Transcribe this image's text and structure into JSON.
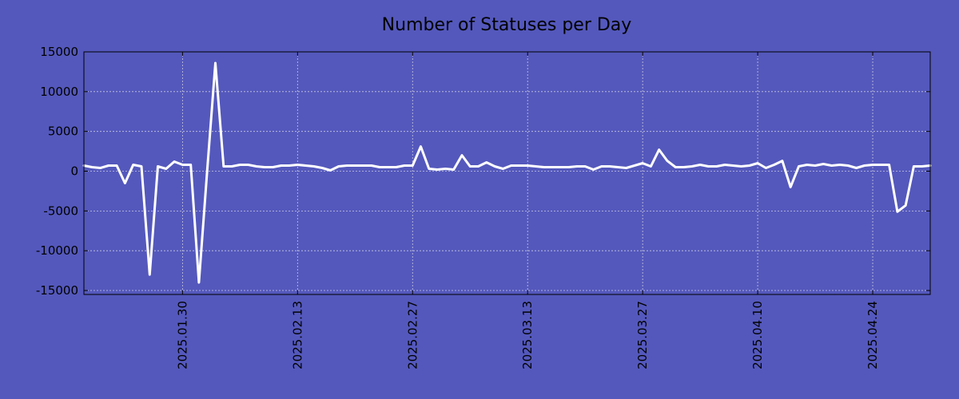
{
  "chart_data": {
    "type": "line",
    "title": "Number of Statuses per Day",
    "xlabel": "",
    "ylabel": "",
    "x_range": [
      "2025-01-18",
      "2025-05-01"
    ],
    "ylim": [
      -15500,
      15000
    ],
    "y_ticks": [
      15000,
      10000,
      5000,
      0,
      -5000,
      -10000,
      -15000
    ],
    "y_tick_labels": [
      "15000",
      "10000",
      "5000",
      "0",
      "-5000",
      "-10000",
      "-15000"
    ],
    "x_ticks": [
      "2025-01-30",
      "2025-02-13",
      "2025-02-27",
      "2025-03-13",
      "2025-03-27",
      "2025-04-10",
      "2025-04-24"
    ],
    "x_tick_labels": [
      "2025.01.30",
      "2025.02.13",
      "2025.02.27",
      "2025.03.13",
      "2025.03.27",
      "2025.04.10",
      "2025.04.24"
    ],
    "grid": true,
    "colors": {
      "background": "#5458bc",
      "line": "#ffffff"
    },
    "series": [
      {
        "x": [
          "2025-01-18",
          "2025-01-19",
          "2025-01-20",
          "2025-01-21",
          "2025-01-22",
          "2025-01-23",
          "2025-01-24",
          "2025-01-25",
          "2025-01-26",
          "2025-01-27",
          "2025-01-28",
          "2025-01-29",
          "2025-01-30",
          "2025-01-31",
          "2025-02-01",
          "2025-02-02",
          "2025-02-03",
          "2025-02-04",
          "2025-02-05",
          "2025-02-06",
          "2025-02-07",
          "2025-02-08",
          "2025-02-09",
          "2025-02-10",
          "2025-02-11",
          "2025-02-12",
          "2025-02-13",
          "2025-02-14",
          "2025-02-15",
          "2025-02-16",
          "2025-02-17",
          "2025-02-18",
          "2025-02-19",
          "2025-02-20",
          "2025-02-21",
          "2025-02-22",
          "2025-02-23",
          "2025-02-24",
          "2025-02-25",
          "2025-02-26",
          "2025-02-27",
          "2025-02-28",
          "2025-03-01",
          "2025-03-02",
          "2025-03-03",
          "2025-03-04",
          "2025-03-05",
          "2025-03-06",
          "2025-03-07",
          "2025-03-08",
          "2025-03-09",
          "2025-03-10",
          "2025-03-11",
          "2025-03-12",
          "2025-03-13",
          "2025-03-14",
          "2025-03-15",
          "2025-03-16",
          "2025-03-17",
          "2025-03-18",
          "2025-03-19",
          "2025-03-20",
          "2025-03-21",
          "2025-03-22",
          "2025-03-23",
          "2025-03-24",
          "2025-03-25",
          "2025-03-26",
          "2025-03-27",
          "2025-03-28",
          "2025-03-29",
          "2025-03-30",
          "2025-03-31",
          "2025-04-01",
          "2025-04-02",
          "2025-04-03",
          "2025-04-04",
          "2025-04-05",
          "2025-04-06",
          "2025-04-07",
          "2025-04-08",
          "2025-04-09",
          "2025-04-10",
          "2025-04-11",
          "2025-04-12",
          "2025-04-13",
          "2025-04-14",
          "2025-04-15",
          "2025-04-16",
          "2025-04-17",
          "2025-04-18",
          "2025-04-19",
          "2025-04-20",
          "2025-04-21",
          "2025-04-22",
          "2025-04-23",
          "2025-04-24",
          "2025-04-25",
          "2025-04-26",
          "2025-04-27",
          "2025-04-28",
          "2025-04-29",
          "2025-04-30",
          "2025-05-01"
        ],
        "values": [
          700,
          500,
          400,
          700,
          700,
          -1500,
          800,
          600,
          -13000,
          600,
          300,
          1200,
          800,
          800,
          -14000,
          0,
          13600,
          600,
          600,
          800,
          800,
          600,
          500,
          500,
          700,
          700,
          800,
          700,
          600,
          400,
          100,
          600,
          700,
          700,
          700,
          700,
          500,
          500,
          500,
          700,
          700,
          3100,
          300,
          200,
          300,
          200,
          2000,
          600,
          600,
          1100,
          600,
          300,
          700,
          700,
          700,
          600,
          500,
          500,
          500,
          500,
          600,
          600,
          200,
          600,
          600,
          500,
          400,
          700,
          1000,
          600,
          2700,
          1300,
          500,
          500,
          600,
          800,
          600,
          600,
          800,
          700,
          600,
          700,
          1000,
          400,
          800,
          1300,
          -2000,
          600,
          800,
          700,
          900,
          700,
          800,
          700,
          400,
          700,
          800,
          800,
          800,
          -5100,
          -4300,
          600,
          600,
          700
        ]
      }
    ]
  }
}
